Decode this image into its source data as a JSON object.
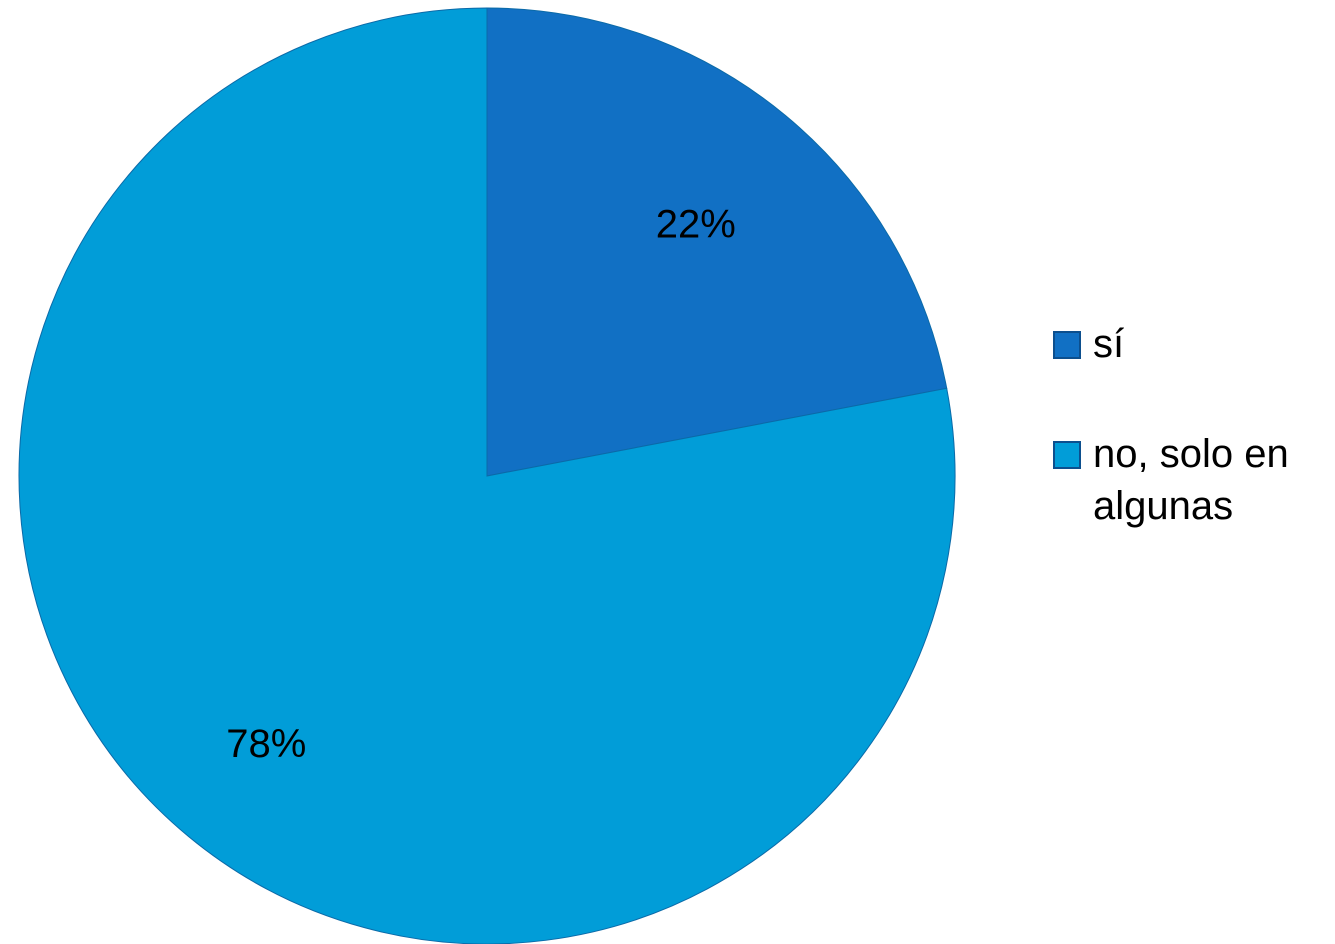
{
  "chart_data": {
    "type": "pie",
    "title": "",
    "categories": [
      "sí",
      "no, solo en algunas"
    ],
    "values": [
      22,
      78
    ],
    "labels": [
      "22%",
      "78%"
    ],
    "colors": [
      "#1170c4",
      "#019dd8"
    ],
    "legend_position": "right"
  }
}
